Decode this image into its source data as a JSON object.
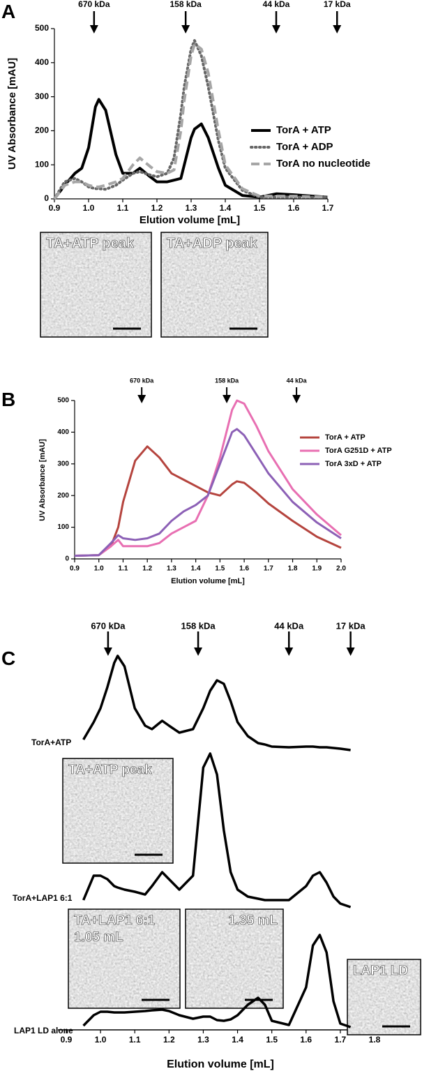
{
  "chart_data": [
    {
      "type": "line",
      "panel_label": "A",
      "xlabel": "Elution volume [mL]",
      "ylabel": "UV Absorbance [mAU]",
      "xlim": [
        0.9,
        1.7
      ],
      "ylim": [
        0,
        500
      ],
      "xticks": [
        0.9,
        {
          "value": 1,
          "label": "1.0"
        },
        1.1,
        1.2,
        1.3,
        1.4,
        1.5,
        1.6,
        1.7
      ],
      "yticks": [
        0,
        100,
        200,
        300,
        400,
        500
      ],
      "legend": "right",
      "markers": [
        {
          "label": "670 kDa",
          "x": 1.016
        },
        {
          "label": "158 kDa",
          "x": 1.284
        },
        {
          "label": "44 kDa",
          "x": 1.549
        },
        {
          "label": "17 kDa",
          "x": 1.727
        }
      ],
      "x": [
        0.9,
        0.93,
        0.96,
        0.98,
        1.0,
        1.02,
        1.03,
        1.05,
        1.08,
        1.1,
        1.13,
        1.15,
        1.18,
        1.2,
        1.23,
        1.25,
        1.27,
        1.28,
        1.3,
        1.31,
        1.33,
        1.35,
        1.38,
        1.4,
        1.45,
        1.5,
        1.55,
        1.6,
        1.7
      ],
      "series": [
        {
          "name": "TorA + ATP",
          "color": "#000000",
          "dash": "solid",
          "values": [
            0,
            40,
            75,
            90,
            150,
            270,
            292,
            260,
            130,
            75,
            75,
            90,
            65,
            50,
            50,
            55,
            60,
            100,
            180,
            205,
            220,
            180,
            90,
            40,
            10,
            5,
            15,
            12,
            5
          ]
        },
        {
          "name": "TorA + ADP",
          "color": "#666666",
          "dash": "dotted",
          "values": [
            0,
            50,
            60,
            50,
            35,
            30,
            30,
            28,
            40,
            55,
            75,
            80,
            70,
            65,
            75,
            120,
            250,
            330,
            440,
            465,
            420,
            330,
            170,
            90,
            25,
            5,
            5,
            5,
            5
          ]
        },
        {
          "name": "TorA no nucleotide",
          "color": "#a6a6a6",
          "dash": "dashed",
          "values": [
            0,
            40,
            50,
            50,
            40,
            35,
            35,
            40,
            50,
            60,
            100,
            120,
            95,
            80,
            75,
            85,
            200,
            290,
            420,
            455,
            440,
            370,
            200,
            100,
            30,
            8,
            8,
            8,
            5
          ]
        }
      ],
      "insets": [
        {
          "labels": [
            "TA+ATP peak"
          ]
        },
        {
          "labels": [
            "TA+ADP peak"
          ]
        }
      ]
    },
    {
      "type": "line",
      "panel_label": "B",
      "xlabel": "Elution volume [mL]",
      "ylabel": "UV Absorbance [mAU]",
      "xlim": [
        0.9,
        2.0
      ],
      "ylim": [
        0,
        500
      ],
      "xticks": [
        0.9,
        {
          "value": 1,
          "label": "1.0"
        },
        1.1,
        1.2,
        1.3,
        1.4,
        1.5,
        1.6,
        1.7,
        1.8,
        1.9,
        {
          "value": 2,
          "label": "2.0"
        }
      ],
      "yticks": [
        0,
        100,
        200,
        300,
        400,
        500
      ],
      "legend": "right",
      "markers": [
        {
          "label": "670 kDa",
          "x": 1.177
        },
        {
          "label": "158 kDa",
          "x": 1.528
        },
        {
          "label": "44 kDa",
          "x": 1.816
        }
      ],
      "x": [
        0.9,
        1.0,
        1.05,
        1.08,
        1.1,
        1.15,
        1.2,
        1.25,
        1.3,
        1.35,
        1.4,
        1.45,
        1.5,
        1.55,
        1.57,
        1.6,
        1.65,
        1.7,
        1.8,
        1.9,
        2.0
      ],
      "series": [
        {
          "name": "TorA + ATP",
          "color": "#b5443e",
          "dash": "solid",
          "values": [
            10,
            12,
            40,
            100,
            180,
            310,
            355,
            320,
            270,
            250,
            230,
            210,
            200,
            235,
            245,
            240,
            210,
            175,
            120,
            70,
            35
          ]
        },
        {
          "name": "TorA G251D + ATP",
          "color": "#e86fb2",
          "dash": "solid",
          "values": [
            10,
            12,
            40,
            60,
            40,
            40,
            40,
            50,
            80,
            100,
            120,
            200,
            320,
            470,
            500,
            490,
            420,
            340,
            220,
            140,
            75
          ]
        },
        {
          "name": "TorA 3xD + ATP",
          "color": "#8c60b6",
          "dash": "solid",
          "values": [
            10,
            12,
            50,
            75,
            65,
            60,
            65,
            80,
            120,
            150,
            170,
            200,
            300,
            400,
            410,
            390,
            330,
            270,
            180,
            115,
            65
          ]
        }
      ],
      "insets": []
    },
    {
      "type": "stacked-trace",
      "panel_label": "C",
      "xlabel": "Elution volume [mL]",
      "xlim": [
        0.9,
        1.8
      ],
      "xticks": [
        0.9,
        {
          "value": 1,
          "label": "1.0"
        },
        1.1,
        1.2,
        1.3,
        1.4,
        1.5,
        1.6,
        1.7,
        1.8
      ],
      "markers": [
        {
          "label": "670 kDa",
          "x": 1.022
        },
        {
          "label": "158 kDa",
          "x": 1.285
        },
        {
          "label": "44 kDa",
          "x": 1.55
        },
        {
          "label": "17 kDa",
          "x": 1.73
        }
      ],
      "x": [
        0.95,
        0.98,
        1.0,
        1.02,
        1.04,
        1.05,
        1.07,
        1.1,
        1.13,
        1.15,
        1.18,
        1.2,
        1.23,
        1.27,
        1.3,
        1.32,
        1.34,
        1.36,
        1.38,
        1.4,
        1.43,
        1.46,
        1.48,
        1.5,
        1.55,
        1.6,
        1.62,
        1.64,
        1.66,
        1.68,
        1.7,
        1.73
      ],
      "series": [
        {
          "name": "TorA+ATP",
          "color": "#000000",
          "values": [
            15,
            40,
            60,
            90,
            125,
            135,
            120,
            60,
            35,
            30,
            42,
            35,
            25,
            30,
            60,
            85,
            100,
            95,
            70,
            40,
            20,
            10,
            8,
            5,
            4,
            5,
            5,
            4,
            4,
            3,
            2,
            0
          ]
        },
        {
          "name": "TorA+LAP1 6:1",
          "color": "#000000",
          "values": [
            10,
            45,
            45,
            40,
            30,
            28,
            25,
            22,
            18,
            30,
            50,
            40,
            25,
            45,
            200,
            220,
            190,
            110,
            50,
            25,
            15,
            12,
            10,
            10,
            10,
            30,
            45,
            50,
            35,
            15,
            5,
            0
          ]
        },
        {
          "name": "LAP1 LD alone",
          "color": "#000000",
          "values": [
            5,
            20,
            25,
            25,
            24,
            24,
            24,
            25,
            26,
            27,
            28,
            26,
            20,
            15,
            18,
            18,
            13,
            12,
            14,
            20,
            35,
            45,
            35,
            12,
            6,
            60,
            120,
            135,
            110,
            40,
            8,
            3
          ]
        }
      ],
      "insets": [
        {
          "labels": [
            "TA+ATP peak"
          ]
        },
        {
          "labels": [
            "TA+LAP1 6:1",
            "1.05 mL"
          ]
        },
        {
          "labels": [
            "1.35 mL"
          ]
        },
        {
          "labels": [
            "LAP1 LD"
          ]
        }
      ]
    }
  ]
}
